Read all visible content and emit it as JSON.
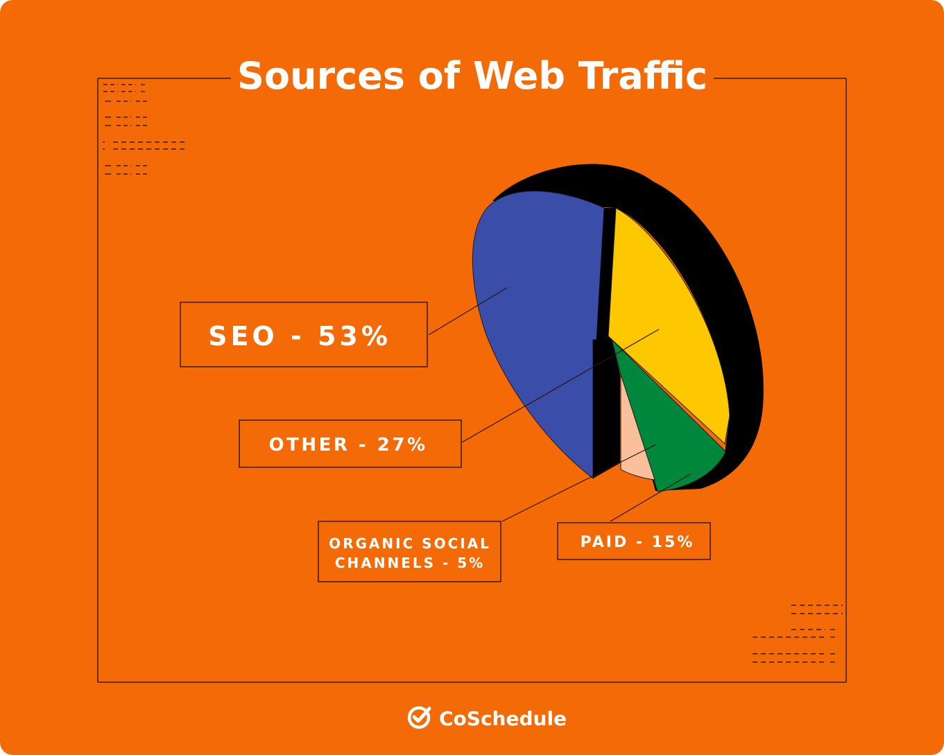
{
  "colors": {
    "background": "#f46a06",
    "frame": "#3a1c05",
    "text": "#ffffff",
    "depth": "#000000",
    "seo": "#3a4da8",
    "other": "#fdc800",
    "paid": "#00873c",
    "organic": "#fbbf9b"
  },
  "chart_data": {
    "type": "pie",
    "title": "Sources of Web Traffic",
    "slices": [
      {
        "label": "SEO",
        "value": 53,
        "color": "#3a4da8",
        "label_text": "SEO - 53%"
      },
      {
        "label": "OTHER",
        "value": 27,
        "color": "#fdc800",
        "label_text": "OTHER - 27%"
      },
      {
        "label": "PAID",
        "value": 15,
        "color": "#00873c",
        "label_text": "PAID - 15%"
      },
      {
        "label": "ORGANIC SOCIAL CHANNELS",
        "value": 5,
        "color": "#fbbf9b",
        "label_text_line1": "ORGANIC SOCIAL",
        "label_text_line2": "CHANNELS - 5%"
      }
    ]
  },
  "brand": {
    "name": "CoSchedule",
    "icon": "check-circle-icon"
  }
}
